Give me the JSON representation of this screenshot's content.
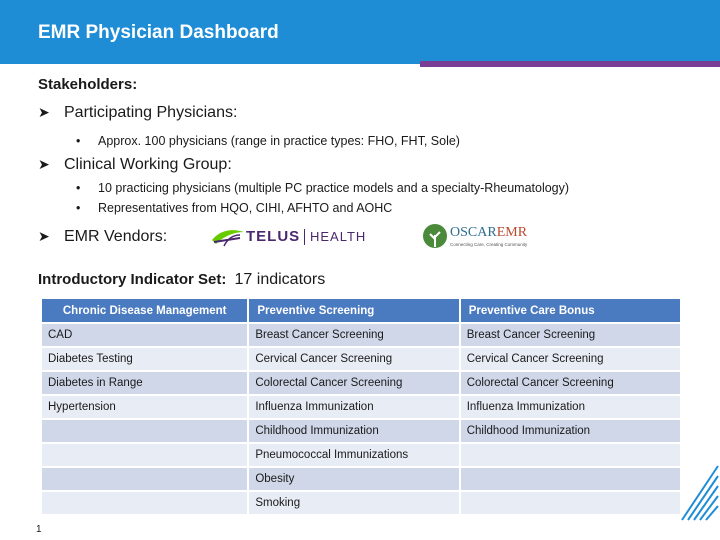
{
  "header": {
    "title": "EMR Physician Dashboard"
  },
  "stakeholders": {
    "label": "Stakeholders:",
    "items": [
      {
        "text": "Participating Physicians:",
        "subitems": [
          "Approx. 100 physicians (range in practice types: FHO, FHT, Sole)"
        ]
      },
      {
        "text": "Clinical Working Group:",
        "subitems": [
          "10 practicing physicians (multiple PC practice models and a specialty-Rheumatology)",
          "Representatives from HQO, CIHI, AFHTO and AOHC"
        ]
      },
      {
        "text": "EMR Vendors:",
        "subitems": []
      }
    ]
  },
  "vendor_logos": {
    "telus": {
      "brand": "TELUS",
      "product": "HEALTH",
      "icon": "telus-leaf-icon",
      "color": "#4b286d",
      "accent": "#66cc00"
    },
    "oscar": {
      "brand_a": "OSCAR",
      "brand_b": "EMR",
      "tagline": "Connecting Care, Creating Community",
      "icon": "oscar-tree-icon",
      "color": "#2d6e91",
      "accent": "#b84a2d"
    }
  },
  "indicators": {
    "label": "Introductory Indicator Set:",
    "count_text": "17 indicators"
  },
  "table": {
    "headers": [
      "Chronic Disease Management",
      "Preventive Screening",
      "Preventive Care Bonus"
    ],
    "rows": [
      [
        "CAD",
        "Breast Cancer Screening",
        "Breast Cancer Screening"
      ],
      [
        "Diabetes Testing",
        "Cervical Cancer Screening",
        "Cervical Cancer Screening"
      ],
      [
        "Diabetes in Range",
        "Colorectal Cancer Screening",
        "Colorectal Cancer Screening"
      ],
      [
        "Hypertension",
        "Influenza Immunization",
        "Influenza Immunization"
      ],
      [
        "",
        "Childhood Immunization",
        "Childhood Immunization"
      ],
      [
        "",
        "Pneumococcal Immunizations",
        ""
      ],
      [
        "",
        "Obesity",
        ""
      ],
      [
        "",
        "Smoking",
        ""
      ]
    ]
  },
  "colors": {
    "header_bg": "#1f8dd6",
    "accent": "#7a3d96",
    "table_header": "#4a7abf",
    "row_odd": "#cfd7e9",
    "row_even": "#e8ecf5"
  },
  "footer": {
    "page_number": "1"
  }
}
